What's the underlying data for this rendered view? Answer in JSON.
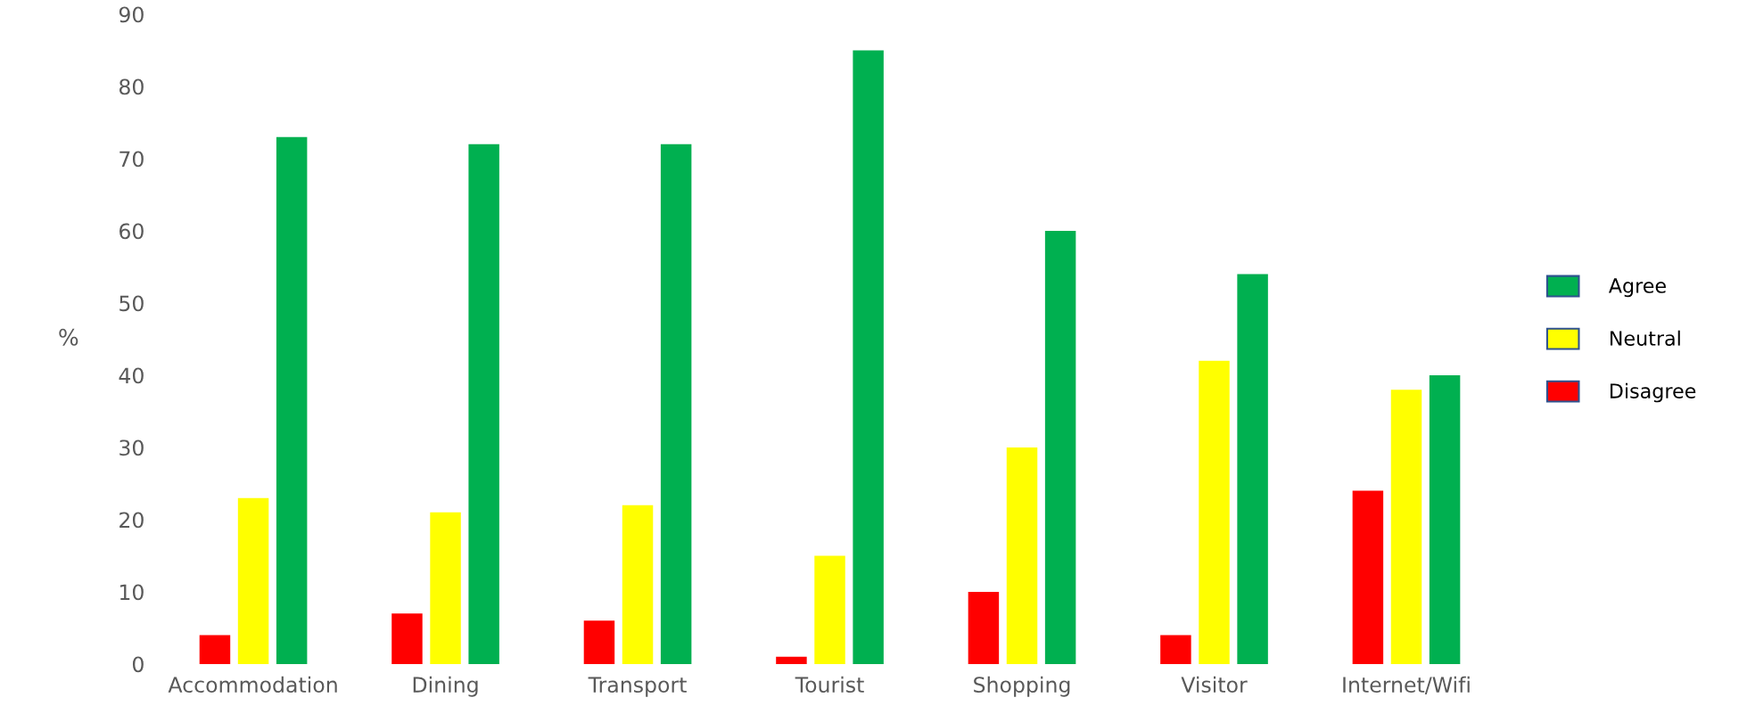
{
  "chart_data": {
    "type": "bar",
    "ylabel": "%",
    "categories": [
      "Accommodation",
      "Dining",
      "Transport",
      "Tourist",
      "Shopping",
      "Visitor",
      "Internet/Wifi"
    ],
    "series": [
      {
        "name": "Disagree",
        "color": "#ff0000",
        "values": [
          4,
          7,
          6,
          1,
          10,
          4,
          24
        ]
      },
      {
        "name": "Neutral",
        "color": "#ffff00",
        "values": [
          23,
          21,
          22,
          15,
          30,
          42,
          38
        ]
      },
      {
        "name": "Agree",
        "color": "#00b050",
        "values": [
          73,
          72,
          72,
          85,
          60,
          54,
          40
        ]
      }
    ],
    "ylim": [
      0,
      90
    ],
    "yticks": [
      0,
      10,
      20,
      30,
      40,
      50,
      60,
      70,
      80,
      90
    ],
    "grid": false,
    "legend": "right"
  }
}
